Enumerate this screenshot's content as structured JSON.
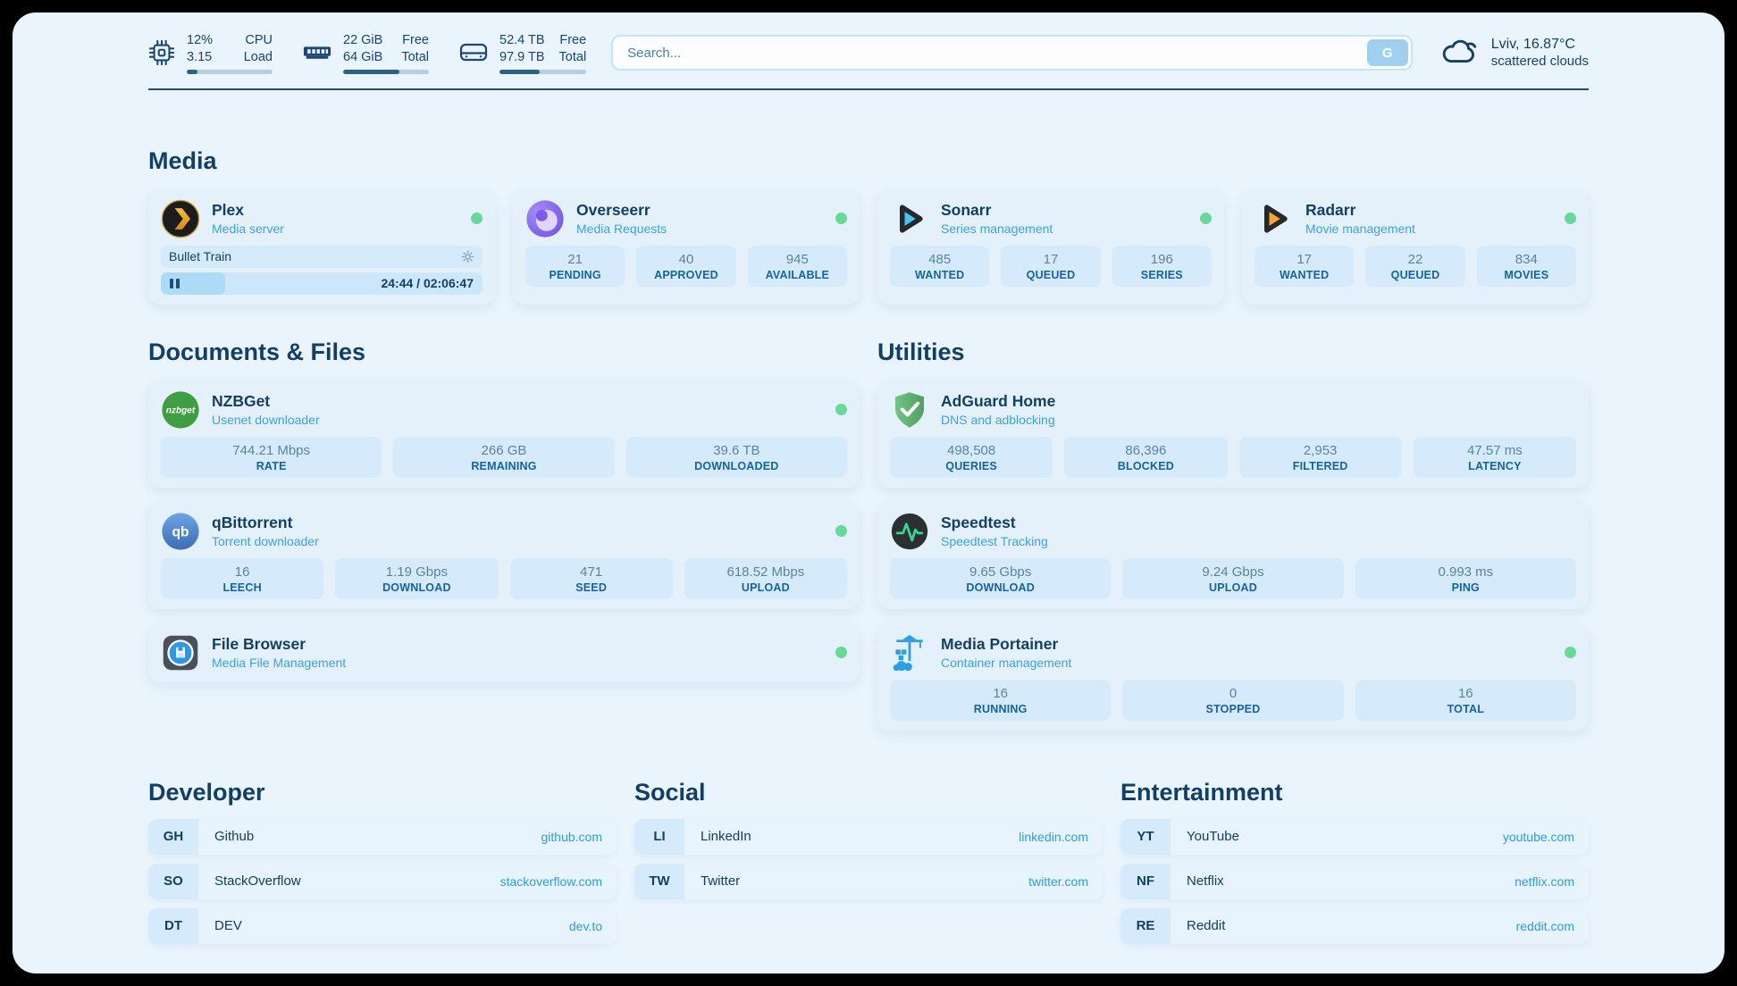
{
  "colors": {
    "status_online": "#68da97",
    "link_blue": "#2f9ce8",
    "navy": "#123f66",
    "accent_fill": "#2d6085"
  },
  "topbar": {
    "system": [
      {
        "icon": "cpu-icon",
        "values": [
          "12%",
          "3.15"
        ],
        "labels": [
          "CPU",
          "Load"
        ],
        "percent": 12
      },
      {
        "icon": "memory-icon",
        "values": [
          "22 GiB",
          "64 GiB"
        ],
        "labels": [
          "Free",
          "Total"
        ],
        "percent": 66
      },
      {
        "icon": "disk-icon",
        "values": [
          "52.4 TB",
          "97.9 TB"
        ],
        "labels": [
          "Free",
          "Total"
        ],
        "percent": 46
      }
    ],
    "search": {
      "placeholder": "Search...",
      "engine": "G"
    },
    "weather": {
      "line1": "Lviv, 16.87°C",
      "line2": "scattered clouds"
    }
  },
  "sections": {
    "media": {
      "title": "Media",
      "plex": {
        "name": "Plex",
        "desc": "Media server",
        "now_playing": "Bullet Train",
        "time": "24:44 / 02:06:47",
        "percent": 20
      },
      "overseerr": {
        "name": "Overseerr",
        "desc": "Media Requests",
        "stats": [
          {
            "value": "21",
            "label": "PENDING"
          },
          {
            "value": "40",
            "label": "APPROVED"
          },
          {
            "value": "945",
            "label": "AVAILABLE"
          }
        ]
      },
      "sonarr": {
        "name": "Sonarr",
        "desc": "Series management",
        "stats": [
          {
            "value": "485",
            "label": "WANTED"
          },
          {
            "value": "17",
            "label": "QUEUED"
          },
          {
            "value": "196",
            "label": "SERIES"
          }
        ]
      },
      "radarr": {
        "name": "Radarr",
        "desc": "Movie management",
        "stats": [
          {
            "value": "17",
            "label": "WANTED"
          },
          {
            "value": "22",
            "label": "QUEUED"
          },
          {
            "value": "834",
            "label": "MOVIES"
          }
        ]
      }
    },
    "documents": {
      "title": "Documents & Files",
      "nzbget": {
        "name": "NZBGet",
        "desc": "Usenet downloader",
        "icon_text": "nzbget",
        "stats": [
          {
            "value": "744.21 Mbps",
            "label": "RATE"
          },
          {
            "value": "266 GB",
            "label": "REMAINING"
          },
          {
            "value": "39.6 TB",
            "label": "DOWNLOADED"
          }
        ]
      },
      "qbittorrent": {
        "name": "qBittorrent",
        "desc": "Torrent downloader",
        "icon_text": "qb",
        "stats": [
          {
            "value": "16",
            "label": "LEECH"
          },
          {
            "value": "1.19 Gbps",
            "label": "DOWNLOAD"
          },
          {
            "value": "471",
            "label": "SEED"
          },
          {
            "value": "618.52 Mbps",
            "label": "UPLOAD"
          }
        ]
      },
      "filebrowser": {
        "name": "File Browser",
        "desc": "Media File Management"
      }
    },
    "utilities": {
      "title": "Utilities",
      "adguard": {
        "name": "AdGuard Home",
        "desc": "DNS and adblocking",
        "stats": [
          {
            "value": "498,508",
            "label": "QUERIES"
          },
          {
            "value": "86,396",
            "label": "BLOCKED"
          },
          {
            "value": "2,953",
            "label": "FILTERED"
          },
          {
            "value": "47.57 ms",
            "label": "LATENCY"
          }
        ]
      },
      "speedtest": {
        "name": "Speedtest",
        "desc": "Speedtest Tracking",
        "stats": [
          {
            "value": "9.65 Gbps",
            "label": "DOWNLOAD"
          },
          {
            "value": "9.24 Gbps",
            "label": "UPLOAD"
          },
          {
            "value": "0.993 ms",
            "label": "PING"
          }
        ]
      },
      "portainer": {
        "name": "Media Portainer",
        "desc": "Container management",
        "stats": [
          {
            "value": "16",
            "label": "RUNNING"
          },
          {
            "value": "0",
            "label": "STOPPED"
          },
          {
            "value": "16",
            "label": "TOTAL"
          }
        ]
      }
    }
  },
  "links": {
    "developer": {
      "title": "Developer",
      "items": [
        {
          "abbr": "GH",
          "name": "Github",
          "url": "github.com"
        },
        {
          "abbr": "SO",
          "name": "StackOverflow",
          "url": "stackoverflow.com"
        },
        {
          "abbr": "DT",
          "name": "DEV",
          "url": "dev.to"
        }
      ]
    },
    "social": {
      "title": "Social",
      "items": [
        {
          "abbr": "LI",
          "name": "LinkedIn",
          "url": "linkedin.com"
        },
        {
          "abbr": "TW",
          "name": "Twitter",
          "url": "twitter.com"
        }
      ]
    },
    "entertainment": {
      "title": "Entertainment",
      "items": [
        {
          "abbr": "YT",
          "name": "YouTube",
          "url": "youtube.com"
        },
        {
          "abbr": "NF",
          "name": "Netflix",
          "url": "netflix.com"
        },
        {
          "abbr": "RE",
          "name": "Reddit",
          "url": "reddit.com"
        }
      ]
    }
  }
}
